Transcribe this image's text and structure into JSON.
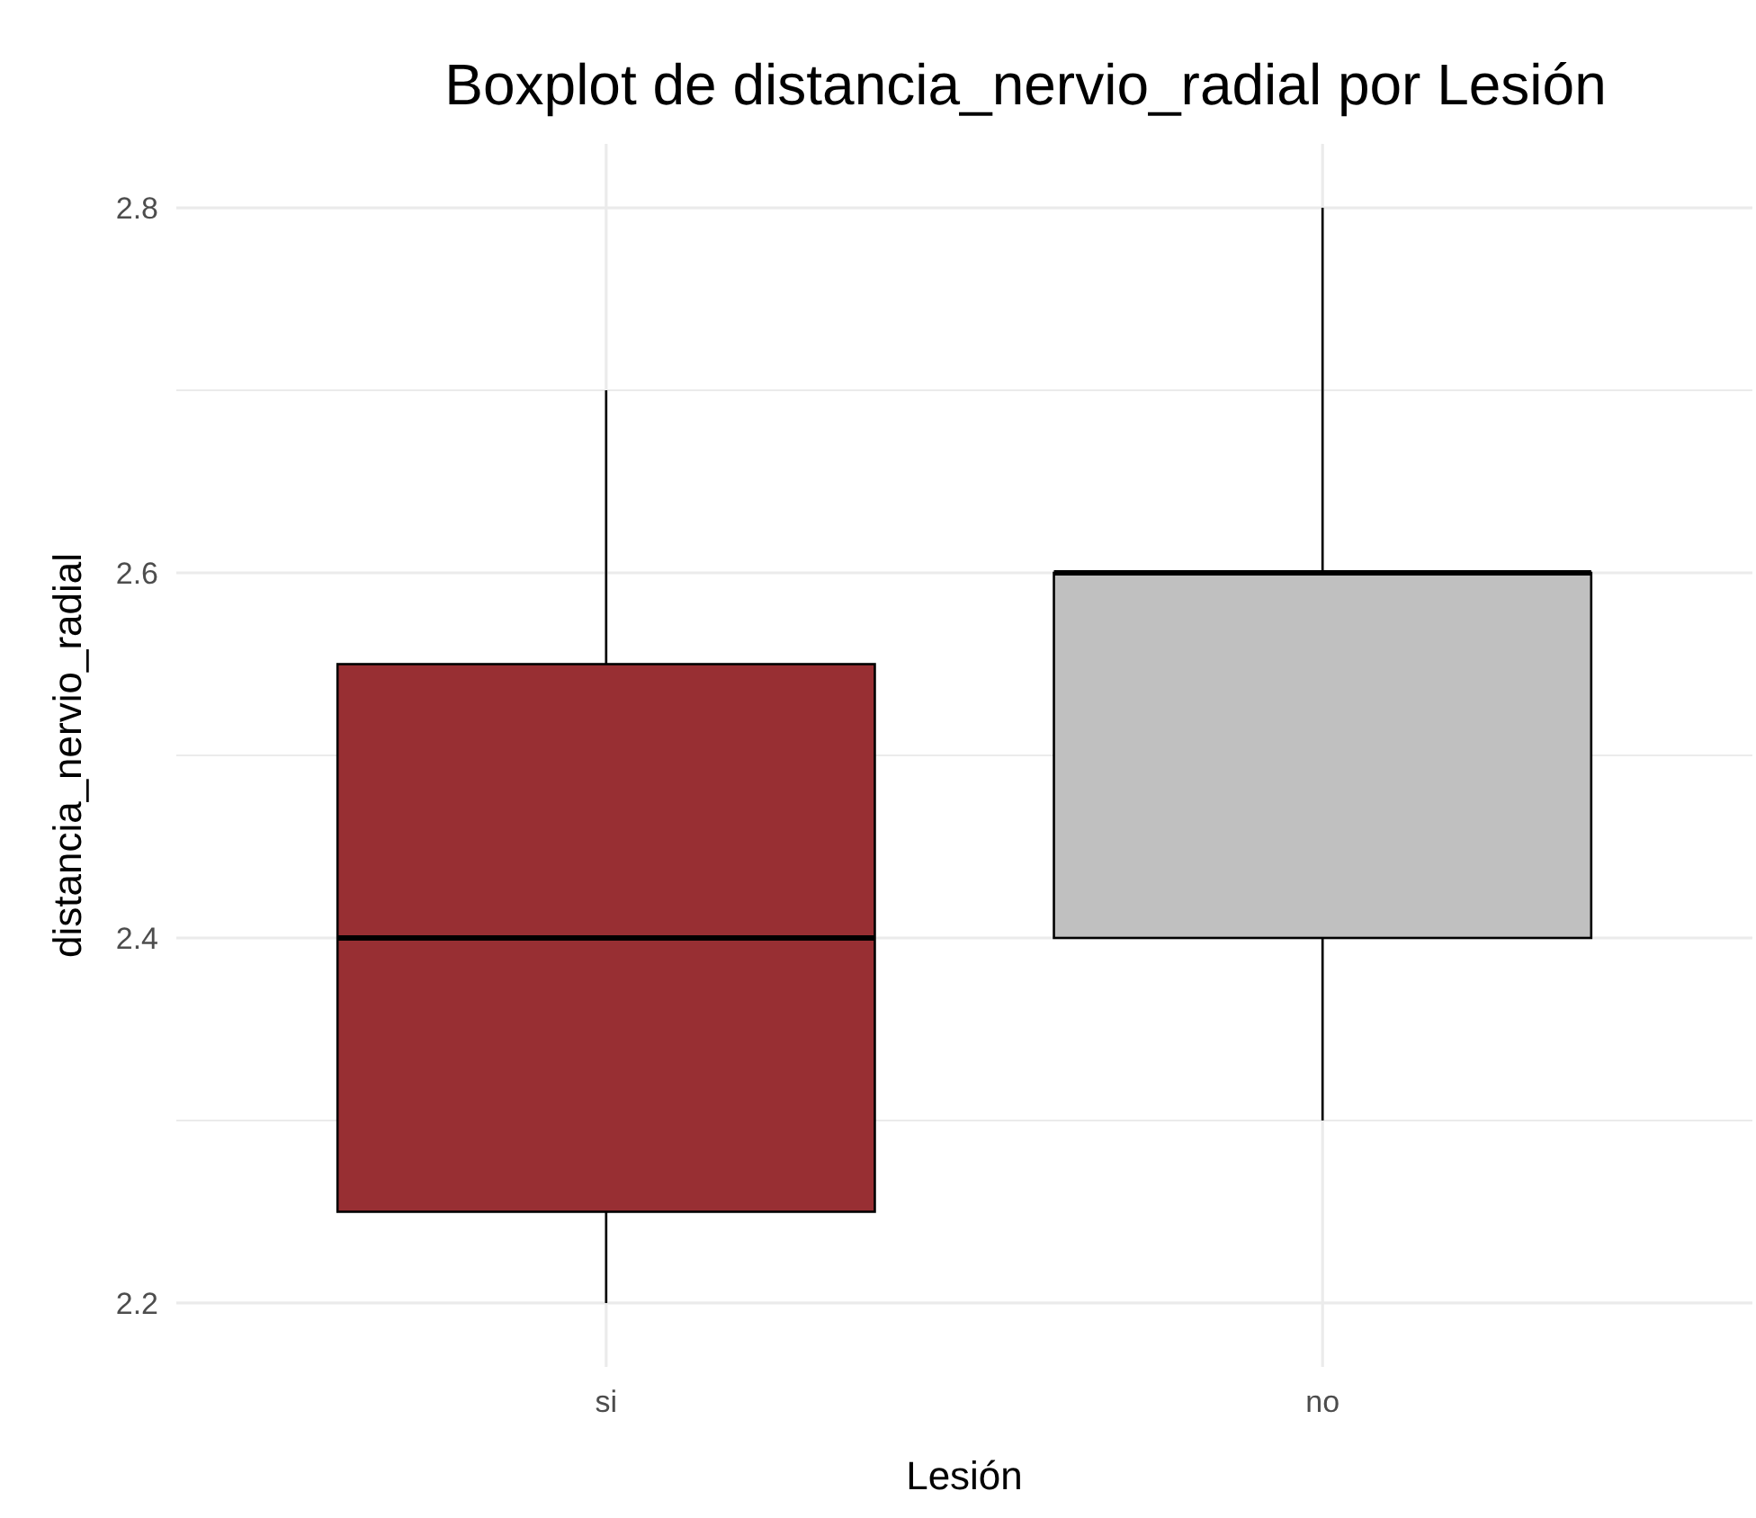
{
  "chart_data": {
    "type": "box",
    "title": "Boxplot de distancia_nervio_radial por Lesión",
    "xlabel": "Lesión",
    "ylabel": "distancia_nervio_radial",
    "categories": [
      "si",
      "no"
    ],
    "colors": [
      "#982f33",
      "#c0c0c0"
    ],
    "boxes": [
      {
        "low": 2.2,
        "q1": 2.25,
        "median": 2.4,
        "q3": 2.55,
        "high": 2.7
      },
      {
        "low": 2.3,
        "q1": 2.4,
        "median": 2.6,
        "q3": 2.6,
        "high": 2.8
      }
    ],
    "ylim": [
      2.165,
      2.835
    ],
    "yticks": [
      2.2,
      {
        "value": 2.3,
        "label": null
      },
      2.4,
      {
        "value": 2.5,
        "label": null
      },
      2.6,
      {
        "value": 2.7,
        "label": null
      },
      2.8
    ],
    "grid": true
  }
}
